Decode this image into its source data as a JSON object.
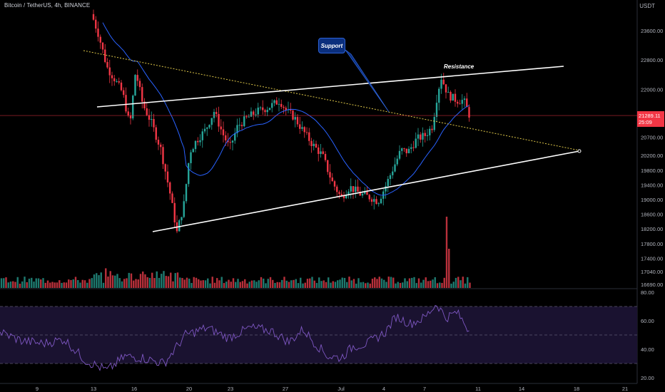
{
  "header": {
    "title": "Bitcoin / TetherUS, 4h, BINANCE",
    "unit": "USDT"
  },
  "price_tag": {
    "price": "21289.11",
    "countdown": "25:09"
  },
  "annotations": {
    "support": "Support",
    "resistance": "Resistance"
  },
  "colors": {
    "up": "#26a69a",
    "down": "#f23645",
    "ma": "#2962ff",
    "rsi": "#7e57c2",
    "trendline": "#ffffff",
    "dotted": "#e0c94a"
  },
  "chart_data": {
    "type": "candlestick",
    "x_ticks": [
      "9",
      "13",
      "16",
      "20",
      "23",
      "27",
      "Jul",
      "4",
      "7",
      "11",
      "14",
      "18",
      "21"
    ],
    "price_axis": {
      "ticks": [
        23600,
        22800,
        22000,
        21289.11,
        20700,
        20200,
        19800,
        19400,
        19000,
        18600,
        18200,
        17800,
        17400,
        17040,
        16690
      ],
      "labels": [
        "23600.00",
        "22800.00",
        "22000.00",
        "21289.11",
        "20700.00",
        "20200.00",
        "19800.00",
        "19400.00",
        "19000.00",
        "18600.00",
        "18200.00",
        "17800.00",
        "17400.00",
        "17040.00",
        "16690.00"
      ]
    },
    "rsi_axis": {
      "ticks": [
        80,
        60,
        40,
        20
      ],
      "labels": [
        "80.00",
        "60.00",
        "40.00",
        "20.00"
      ]
    },
    "last_price": 21289.11,
    "series": [
      {
        "name": "Candles",
        "type": "candlestick"
      },
      {
        "name": "Moving average",
        "type": "line"
      },
      {
        "name": "Volume",
        "type": "bar"
      },
      {
        "name": "RSI",
        "type": "line"
      }
    ]
  }
}
